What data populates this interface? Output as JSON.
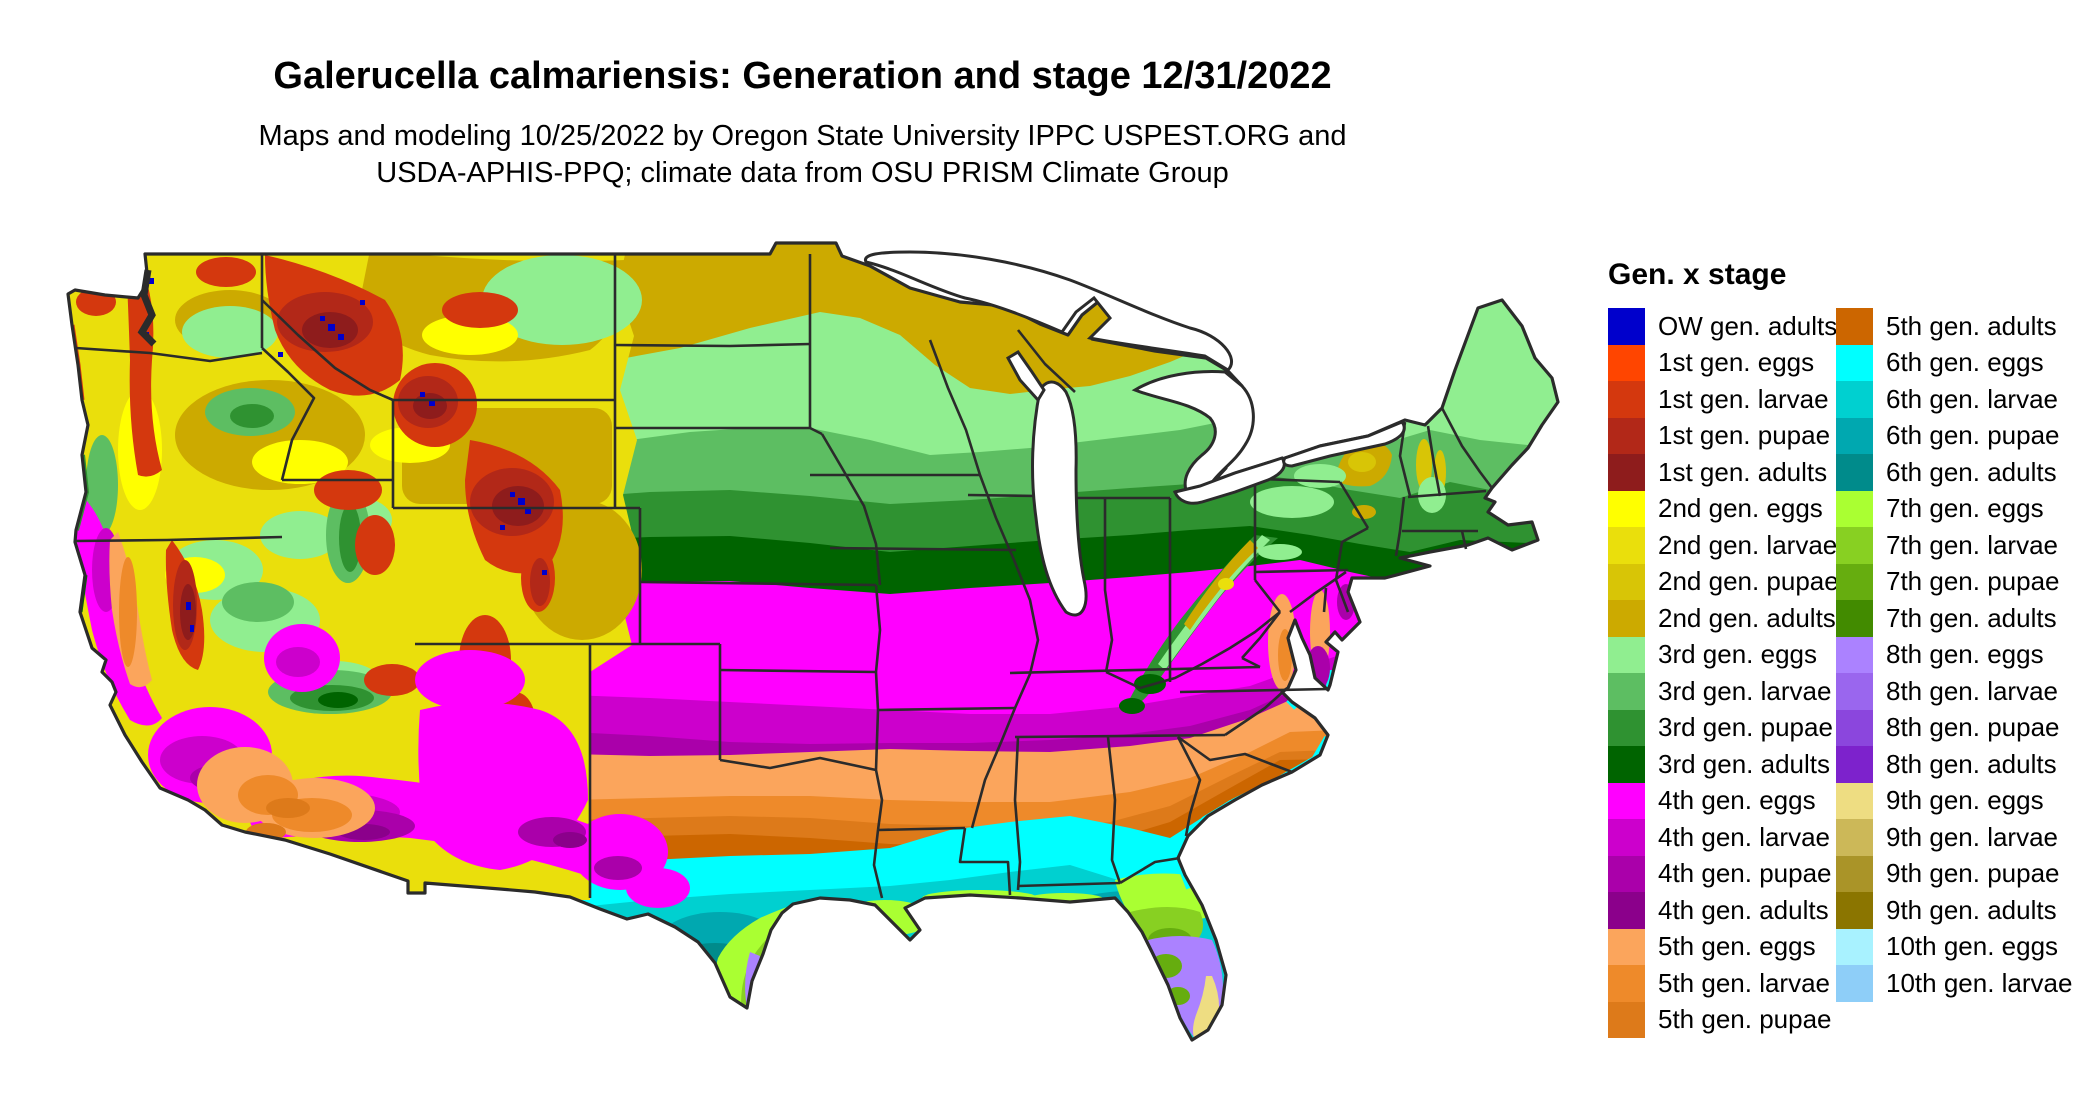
{
  "header": {
    "title": "Galerucella calmariensis: Generation and stage 12/31/2022",
    "subtitle_line1": "Maps and modeling 10/25/2022 by Oregon State University IPPC USPEST.ORG and",
    "subtitle_line2": "USDA-APHIS-PPQ; climate data from OSU PRISM Climate Group"
  },
  "legend": {
    "title": "Gen. x stage",
    "columns": [
      {
        "entries": [
          {
            "key": "ow_adults",
            "label": "OW gen. adults"
          },
          {
            "key": "g1_eggs",
            "label": "1st gen. eggs"
          },
          {
            "key": "g1_larvae",
            "label": "1st gen. larvae"
          },
          {
            "key": "g1_pupae",
            "label": "1st gen. pupae"
          },
          {
            "key": "g1_adults",
            "label": "1st gen. adults"
          },
          {
            "key": "g2_eggs",
            "label": "2nd gen. eggs"
          },
          {
            "key": "g2_larvae",
            "label": "2nd gen. larvae"
          },
          {
            "key": "g2_pupae",
            "label": "2nd gen. pupae"
          },
          {
            "key": "g2_adults",
            "label": "2nd gen. adults"
          },
          {
            "key": "g3_eggs",
            "label": "3rd gen. eggs"
          },
          {
            "key": "g3_larvae",
            "label": "3rd gen. larvae"
          },
          {
            "key": "g3_pupae",
            "label": "3rd gen. pupae"
          },
          {
            "key": "g3_adults",
            "label": "3rd gen. adults"
          },
          {
            "key": "g4_eggs",
            "label": "4th gen. eggs"
          },
          {
            "key": "g4_larvae",
            "label": "4th gen. larvae"
          },
          {
            "key": "g4_pupae",
            "label": "4th gen. pupae"
          },
          {
            "key": "g4_adults",
            "label": "4th gen. adults"
          },
          {
            "key": "g5_eggs",
            "label": "5th gen. eggs"
          },
          {
            "key": "g5_larvae",
            "label": "5th gen. larvae"
          },
          {
            "key": "g5_pupae",
            "label": "5th gen. pupae"
          }
        ]
      },
      {
        "entries": [
          {
            "key": "g5_adults",
            "label": "5th gen. adults"
          },
          {
            "key": "g6_eggs",
            "label": "6th gen. eggs"
          },
          {
            "key": "g6_larvae",
            "label": "6th gen. larvae"
          },
          {
            "key": "g6_pupae",
            "label": "6th gen. pupae"
          },
          {
            "key": "g6_adults",
            "label": "6th gen. adults"
          },
          {
            "key": "g7_eggs",
            "label": "7th gen. eggs"
          },
          {
            "key": "g7_larvae",
            "label": "7th gen. larvae"
          },
          {
            "key": "g7_pupae",
            "label": "7th gen. pupae"
          },
          {
            "key": "g7_adults",
            "label": "7th gen. adults"
          },
          {
            "key": "g8_eggs",
            "label": "8th gen. eggs"
          },
          {
            "key": "g8_larvae",
            "label": "8th gen. larvae"
          },
          {
            "key": "g8_pupae",
            "label": "8th gen. pupae"
          },
          {
            "key": "g8_adults",
            "label": "8th gen. adults"
          },
          {
            "key": "g9_eggs",
            "label": "9th gen. eggs"
          },
          {
            "key": "g9_larvae",
            "label": "9th gen. larvae"
          },
          {
            "key": "g9_pupae",
            "label": "9th gen. pupae"
          },
          {
            "key": "g9_adults",
            "label": "9th gen. adults"
          },
          {
            "key": "g10_eggs",
            "label": "10th gen. eggs"
          },
          {
            "key": "g10_larvae",
            "label": "10th gen. larvae"
          }
        ]
      }
    ]
  },
  "palette": {
    "ow_adults": "#0000CC",
    "g1_eggs": "#FF4500",
    "g1_larvae": "#D4380E",
    "g1_pupae": "#B22818",
    "g1_adults": "#8E1C1C",
    "g2_eggs": "#FFFF00",
    "g2_larvae": "#EADF0C",
    "g2_pupae": "#D8C506",
    "g2_adults": "#CCAA00",
    "g3_eggs": "#90EE90",
    "g3_larvae": "#5DBE62",
    "g3_pupae": "#2F9231",
    "g3_adults": "#006400",
    "g4_eggs": "#FF00FF",
    "g4_larvae": "#CC00CC",
    "g4_pupae": "#AA00AA",
    "g4_adults": "#8B008B",
    "g5_eggs": "#FBA55C",
    "g5_larvae": "#EE8A2A",
    "g5_pupae": "#DD7A1A",
    "g5_adults": "#CC6600",
    "g6_eggs": "#00FFFF",
    "g6_larvae": "#00D0D0",
    "g6_pupae": "#00A8B0",
    "g6_adults": "#008B8B",
    "g7_eggs": "#AAFF32",
    "g7_larvae": "#88D022",
    "g7_pupae": "#66AD0F",
    "g7_adults": "#428B00",
    "g8_eggs": "#AB82FF",
    "g8_larvae": "#9A66EE",
    "g8_pupae": "#8B46DD",
    "g8_adults": "#7D22CC",
    "g9_eggs": "#EEDD82",
    "g9_larvae": "#CCB858",
    "g9_pupae": "#AA9428",
    "g9_adults": "#8B7500",
    "g10_eggs": "#A8F2FF",
    "g10_larvae": "#8ECEF8",
    "outline": "#2b2b2b",
    "water": "#ffffff",
    "background": "#ffffff",
    "text": "#000000"
  }
}
